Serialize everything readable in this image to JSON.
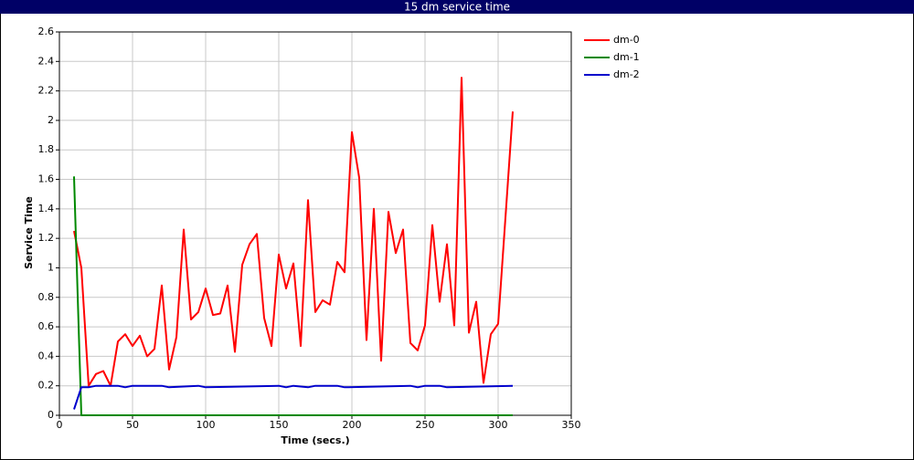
{
  "chart_data": {
    "type": "line",
    "title": "15 dm service time",
    "x_label": "Time (secs.)",
    "y_label": "Service Time",
    "xlim": [
      0,
      350
    ],
    "xticks": [
      0,
      50,
      100,
      150,
      200,
      250,
      300,
      350
    ],
    "ylim": [
      0,
      2.6
    ],
    "yticks": [
      0,
      0.2,
      0.4,
      0.6,
      0.8,
      1,
      1.2,
      1.4,
      1.6,
      1.8,
      2,
      2.2,
      2.4,
      2.6
    ],
    "grid": true,
    "legend": "right",
    "series": [
      {
        "name": "dm-0",
        "color": "#ff0000",
        "x": [
          10,
          15,
          20,
          25,
          30,
          35,
          40,
          45,
          50,
          55,
          60,
          65,
          70,
          75,
          80,
          85,
          90,
          95,
          100,
          105,
          110,
          115,
          120,
          125,
          130,
          135,
          140,
          145,
          150,
          155,
          160,
          165,
          170,
          175,
          180,
          185,
          190,
          195,
          200,
          205,
          210,
          215,
          220,
          225,
          230,
          235,
          240,
          245,
          250,
          255,
          260,
          265,
          270,
          275,
          280,
          285,
          290,
          295,
          300,
          310
        ],
        "values": [
          1.25,
          1.0,
          0.2,
          0.28,
          0.3,
          0.2,
          0.5,
          0.55,
          0.47,
          0.54,
          0.4,
          0.45,
          0.88,
          0.31,
          0.53,
          1.26,
          0.65,
          0.7,
          0.86,
          0.68,
          0.69,
          0.88,
          0.43,
          1.02,
          1.16,
          1.23,
          0.66,
          0.47,
          1.09,
          0.86,
          1.03,
          0.47,
          1.46,
          0.7,
          0.78,
          0.75,
          1.04,
          0.97,
          1.92,
          1.61,
          0.51,
          1.4,
          0.37,
          1.38,
          1.1,
          1.26,
          0.49,
          0.44,
          0.61,
          1.29,
          0.77,
          1.16,
          0.61,
          2.29,
          0.56,
          0.77,
          0.22,
          0.55,
          0.62,
          2.06
        ]
      },
      {
        "name": "dm-1",
        "color": "#008800",
        "x": [
          10,
          15,
          310
        ],
        "values": [
          1.62,
          0,
          0
        ]
      },
      {
        "name": "dm-2",
        "color": "#0000cc",
        "x": [
          10,
          15,
          20,
          25,
          40,
          45,
          50,
          70,
          75,
          95,
          100,
          150,
          155,
          160,
          170,
          175,
          190,
          195,
          240,
          245,
          250,
          260,
          265,
          310
        ],
        "values": [
          0.04,
          0.19,
          0.19,
          0.2,
          0.2,
          0.19,
          0.2,
          0.2,
          0.19,
          0.2,
          0.19,
          0.2,
          0.19,
          0.2,
          0.19,
          0.2,
          0.2,
          0.19,
          0.2,
          0.19,
          0.2,
          0.2,
          0.19,
          0.2
        ]
      }
    ]
  }
}
